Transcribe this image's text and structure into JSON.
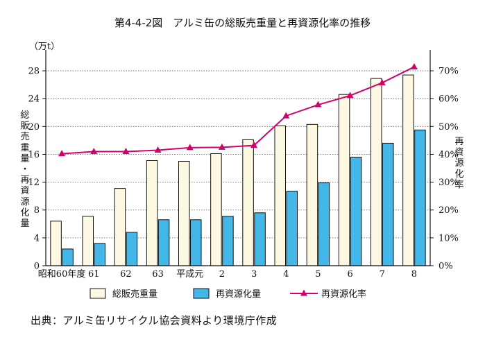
{
  "chart_data": {
    "type": "bar",
    "title": "第4-4-2図　アルミ缶の総販売重量と再資源化率の推移",
    "unit_label": "（万t）",
    "ylabel": "総販売重量・再資源化量",
    "ylabel_right": "再資源化率",
    "categories": [
      "昭和60年度",
      "61",
      "62",
      "63",
      "平成元",
      "2",
      "3",
      "4",
      "5",
      "6",
      "7",
      "8"
    ],
    "y_ticks": [
      "0",
      "4",
      "8",
      "12",
      "16",
      "20",
      "24",
      "28"
    ],
    "y_right_ticks": [
      "0%",
      "10%",
      "20%",
      "30%",
      "40%",
      "50%",
      "60%",
      "70%"
    ],
    "ylim": [
      0,
      30
    ],
    "ylim_right": [
      0,
      75
    ],
    "grid": true,
    "legend_position": "bottom",
    "series": [
      {
        "name": "総販売重量",
        "type": "bar",
        "color": "#fdf8e1",
        "values": [
          6.4,
          7.1,
          11.1,
          15.1,
          15.0,
          16.1,
          18.1,
          20.1,
          20.3,
          24.6,
          26.9,
          27.4
        ]
      },
      {
        "name": "再資源化量",
        "type": "bar",
        "color": "#43b8e8",
        "values": [
          2.4,
          3.2,
          4.8,
          6.6,
          6.6,
          7.1,
          7.6,
          10.7,
          11.9,
          15.6,
          17.6,
          19.5
        ]
      },
      {
        "name": "再資源化率",
        "type": "line",
        "axis": "right",
        "color": "#d1006e",
        "values": [
          40.2,
          41.0,
          41.0,
          41.5,
          42.4,
          42.5,
          43.2,
          53.8,
          57.8,
          61.1,
          65.7,
          71.4
        ]
      }
    ]
  },
  "source_note": "出典：アルミ缶リサイクル協会資料より環境庁作成"
}
